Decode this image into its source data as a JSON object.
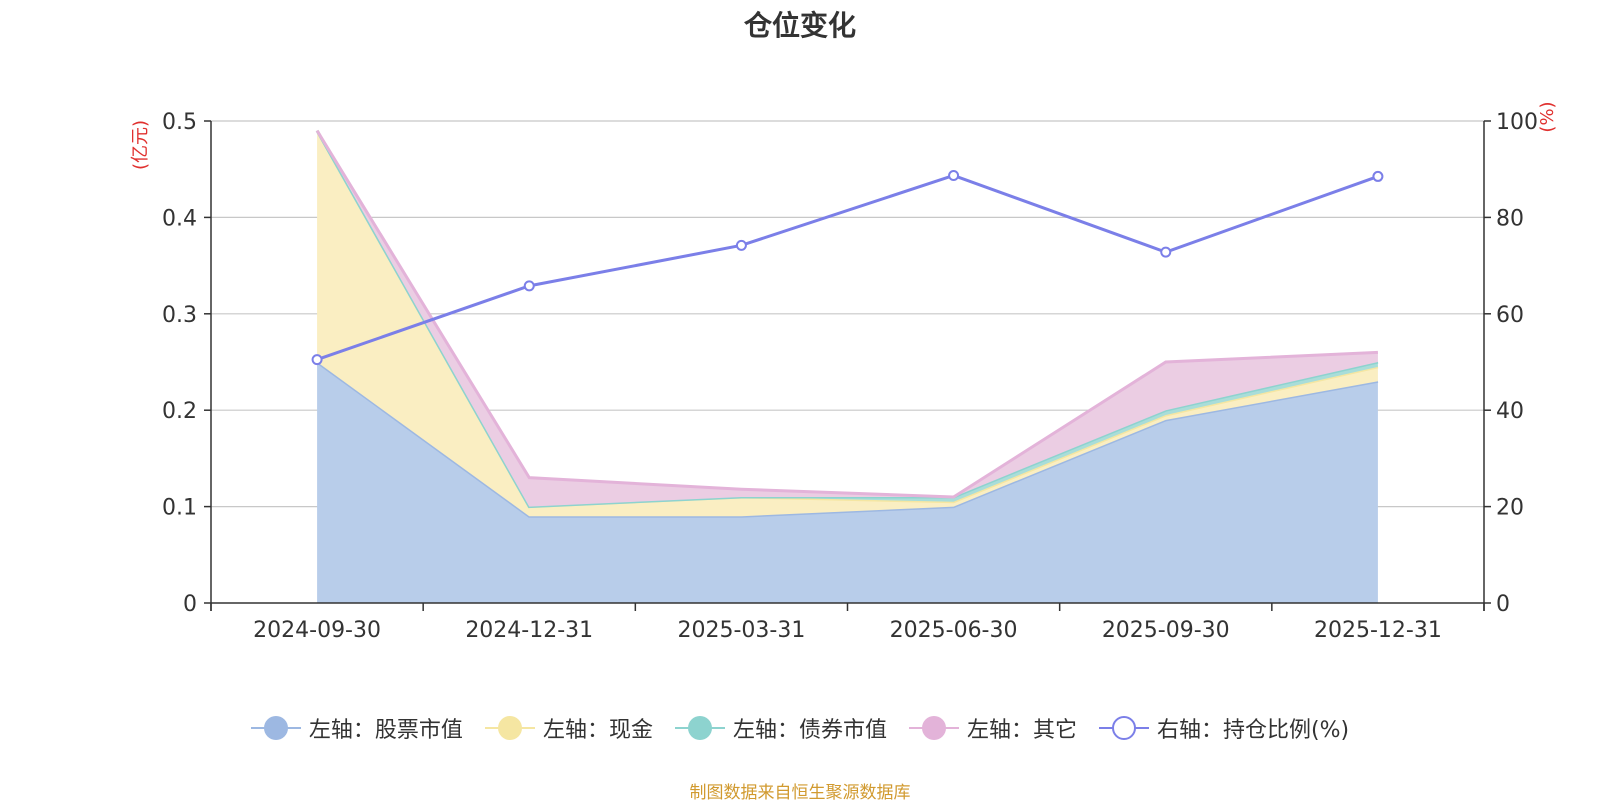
{
  "chart_data": {
    "type": "area",
    "title": "仓位变化",
    "categories": [
      "2024-09-30",
      "2024-12-31",
      "2025-03-31",
      "2025-06-30",
      "2025-09-30",
      "2025-12-31"
    ],
    "y_left": {
      "label": "(亿元)",
      "ylim": [
        0,
        0.5
      ],
      "ticks": [
        0,
        0.1,
        0.2,
        0.3,
        0.4,
        0.5
      ]
    },
    "y_right": {
      "label": "(%)",
      "ylim": [
        0,
        100
      ],
      "ticks": [
        0,
        20,
        40,
        60,
        80,
        100
      ]
    },
    "grid": true,
    "legend_position": "bottom",
    "series": [
      {
        "name": "左轴：股票市值",
        "axis": "left",
        "stack": true,
        "color": "#9db8e2",
        "fill": "#b8cdea",
        "values": [
          0.25,
          0.09,
          0.09,
          0.1,
          0.19,
          0.23
        ]
      },
      {
        "name": "左轴：现金",
        "axis": "left",
        "stack": true,
        "color": "#f5e6a2",
        "fill": "#faeec2",
        "values": [
          0.24,
          0.01,
          0.02,
          0.005,
          0.005,
          0.015
        ]
      },
      {
        "name": "左轴：债券市值",
        "axis": "left",
        "stack": true,
        "color": "#8dd3cf",
        "fill": "#a9ddd9",
        "values": [
          0,
          0,
          0,
          0.005,
          0.005,
          0.005
        ]
      },
      {
        "name": "左轴：其它",
        "axis": "left",
        "stack": true,
        "color": "#e3b3d9",
        "fill": "#ebcde3",
        "values": [
          0,
          0.03,
          0.008,
          0,
          0.05,
          0.01
        ]
      },
      {
        "name": "右轴：持仓比例(%)",
        "axis": "right",
        "type": "line",
        "color": "#7b7fe8",
        "values": [
          50.5,
          65.8,
          74.2,
          88.7,
          72.8,
          88.5
        ]
      }
    ],
    "source_note": "制图数据来自恒生聚源数据库"
  }
}
